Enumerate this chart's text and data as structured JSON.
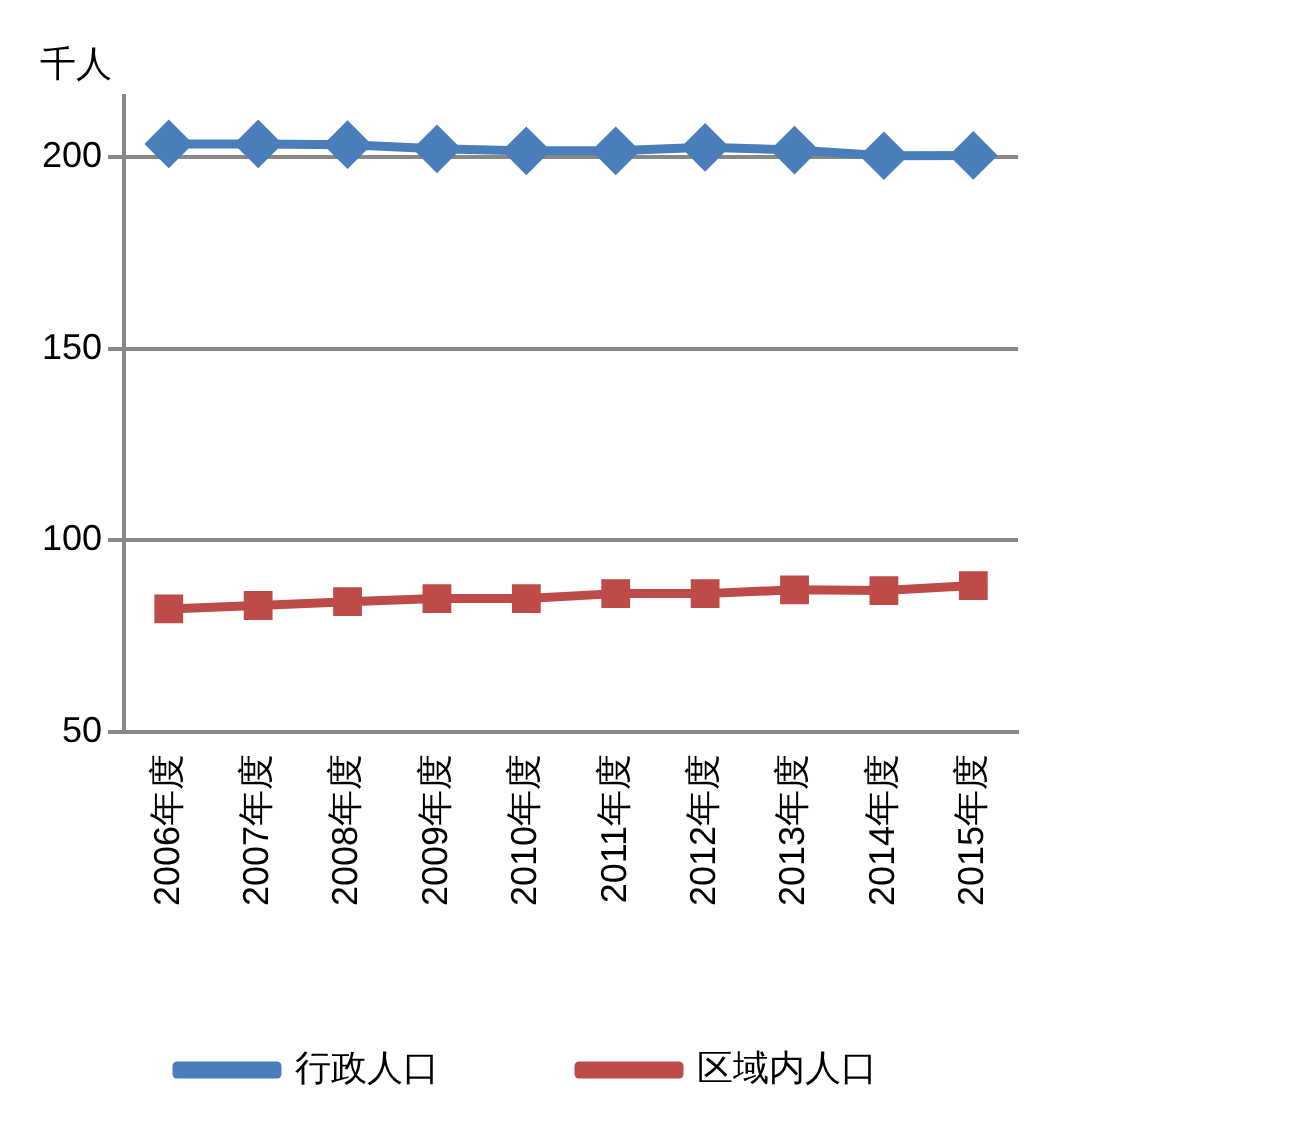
{
  "chart_data": {
    "type": "line",
    "ylabel": "千人",
    "categories": [
      "2006年度",
      "2007年度",
      "2008年度",
      "2009年度",
      "2010年度",
      "2011年度",
      "2012年度",
      "2013年度",
      "2014年度",
      "2015年度"
    ],
    "series": [
      {
        "name": "行政人口",
        "color": "#4a7ebb",
        "marker": "diamond",
        "values": [
          203.5,
          203.5,
          203.3,
          202.2,
          201.7,
          201.7,
          202.6,
          201.9,
          200.4,
          200.5
        ]
      },
      {
        "name": "区域内人口",
        "color": "#be4b48",
        "marker": "square",
        "values": [
          82.1,
          83.0,
          84.0,
          84.8,
          84.8,
          86.1,
          86.1,
          87.1,
          86.9,
          88.2
        ]
      }
    ],
    "ylim": [
      50,
      216
    ],
    "yticks": [
      50,
      100,
      150,
      200
    ],
    "grid": "y",
    "legend": "bottom"
  }
}
